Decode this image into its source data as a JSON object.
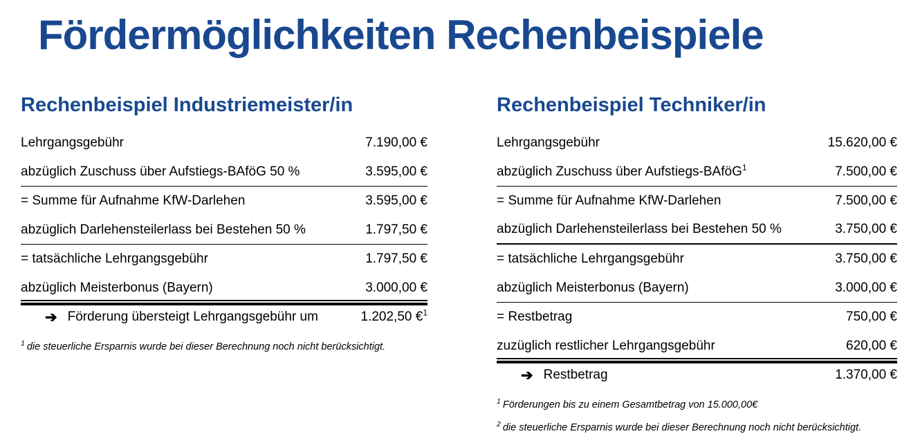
{
  "page": {
    "title": "Fördermöglichkeiten Rechenbeispiele"
  },
  "colors": {
    "heading_blue": "#194890",
    "body_text": "#000000",
    "rule_black": "#000000"
  },
  "icons": {
    "result_arrow": "arrow-right-icon"
  },
  "left": {
    "heading": "Rechenbeispiel Industriemeister/in",
    "rows": [
      {
        "label": "Lehrgangsgebühr",
        "value": "7.190,00 €"
      },
      {
        "label": "abzüglich Zuschuss über Aufstiegs-BAföG 50 %",
        "value": "3.595,00 €"
      },
      {
        "label": "= Summe für Aufnahme KfW-Darlehen",
        "value": "3.595,00 €"
      },
      {
        "label": "abzüglich Darlehensteilerlass bei Bestehen 50 %",
        "value": "1.797,50 €"
      },
      {
        "label": "= tatsächliche Lehrgangsgebühr",
        "value": "1.797,50 €"
      },
      {
        "label": "abzüglich Meisterbonus (Bayern)",
        "value": "3.000,00 €"
      }
    ],
    "result": {
      "arrow": "➔",
      "label": "Förderung übersteigt Lehrgangsgebühr um",
      "value": "1.202,50 €",
      "value_sup": "1"
    },
    "footnotes": [
      {
        "marker": "1",
        "text": "die steuerliche Ersparnis wurde bei dieser Berechnung noch nicht berücksichtigt."
      }
    ]
  },
  "right": {
    "heading": "Rechenbeispiel Techniker/in",
    "rows": [
      {
        "label": "Lehrgangsgebühr",
        "value": "15.620,00 €"
      },
      {
        "label": "abzüglich Zuschuss über Aufstiegs-BAföG",
        "label_sup": "1",
        "value": "7.500,00 €"
      },
      {
        "label": "= Summe für Aufnahme KfW-Darlehen",
        "value": "7.500,00 €"
      },
      {
        "label": "abzüglich Darlehensteilerlass bei Bestehen 50 %",
        "value": "3.750,00 €"
      },
      {
        "label": "= tatsächliche Lehrgangsgebühr",
        "value": "3.750,00 €"
      },
      {
        "label": "abzüglich Meisterbonus (Bayern)",
        "value": "3.000,00 €"
      },
      {
        "label": "= Restbetrag",
        "value": "750,00 €"
      },
      {
        "label": "zuzüglich restlicher Lehrgangsgebühr",
        "value": "620,00 €"
      }
    ],
    "result": {
      "arrow": "➔",
      "label": "Restbetrag",
      "value": "1.370,00 €"
    },
    "footnotes": [
      {
        "marker": "1",
        "text": "Förderungen bis zu einem Gesamtbetrag von 15.000,00€"
      },
      {
        "marker": "2",
        "text": "die steuerliche Ersparnis wurde bei dieser Berechnung noch nicht berücksichtigt."
      }
    ]
  }
}
